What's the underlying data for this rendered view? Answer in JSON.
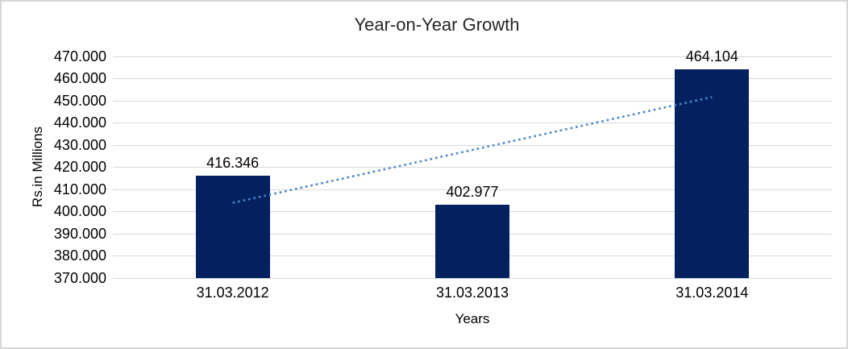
{
  "chart_data": {
    "type": "bar",
    "title": "Year-on-Year Growth",
    "xlabel": "Years",
    "ylabel": "Rs.in Millions",
    "categories": [
      "31.03.2012",
      "31.03.2013",
      "31.03.2014"
    ],
    "values": [
      416.346,
      402.977,
      464.104
    ],
    "data_labels": [
      "416.346",
      "402.977",
      "464.104"
    ],
    "ylim": [
      370,
      470
    ],
    "ytick_values": [
      370,
      380,
      390,
      400,
      410,
      420,
      430,
      440,
      450,
      460,
      470
    ],
    "ytick_labels": [
      "370.000",
      "380.000",
      "390.000",
      "400.000",
      "410.000",
      "420.000",
      "430.000",
      "440.000",
      "450.000",
      "460.000",
      "470.000"
    ],
    "grid": true,
    "legend": "none",
    "trendline": {
      "type": "linear",
      "style": "dotted"
    },
    "colors": {
      "bar": "#02215e",
      "trendline": "#4a86c8",
      "gridline": "#d9d9d9",
      "text": "#000000",
      "title_text": "#262626",
      "border": "#d6d6d6",
      "background": "#ffffff"
    }
  }
}
